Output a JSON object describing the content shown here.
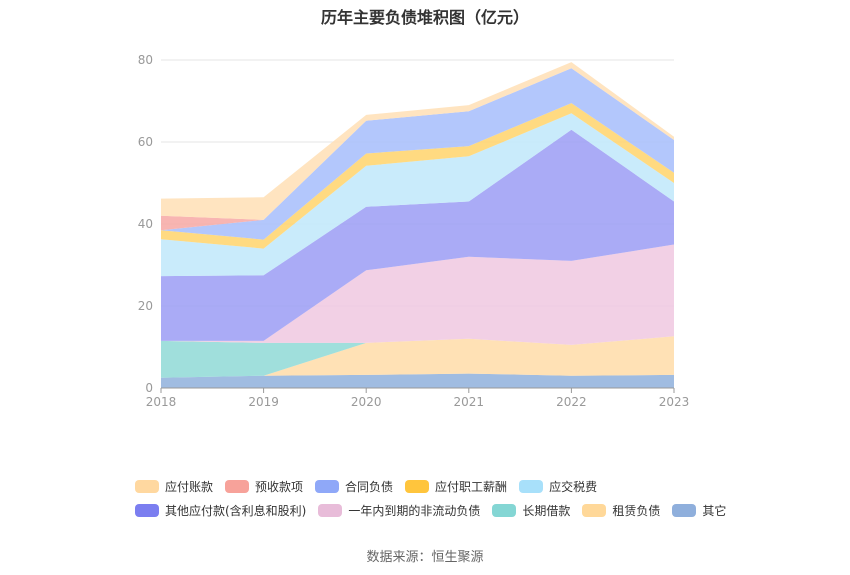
{
  "title": "历年主要负债堆积图（亿元）",
  "source": "数据来源：恒生聚源",
  "chart_data": {
    "type": "area",
    "stacked": true,
    "x": [
      "2018",
      "2019",
      "2020",
      "2021",
      "2022",
      "2023"
    ],
    "ylim": [
      0,
      80
    ],
    "yticks": [
      0,
      20,
      40,
      60,
      80
    ],
    "grid": true,
    "legend_position": "bottom",
    "series": [
      {
        "name": "其它",
        "color": "#8fb0dc",
        "values": [
          2.5,
          3.0,
          3.2,
          3.5,
          3.0,
          3.2
        ]
      },
      {
        "name": "租赁负债",
        "color": "#ffdca8",
        "values": [
          0.0,
          0.0,
          7.8,
          8.5,
          7.5,
          9.4
        ]
      },
      {
        "name": "长期借款",
        "color": "#8fd9d6",
        "values": [
          9.0,
          8.0,
          0.0,
          0.0,
          0.0,
          0.0
        ]
      },
      {
        "name": "一年内到期的非流动负债",
        "color": "#f0c8e0",
        "values": [
          0.0,
          0.5,
          17.7,
          20.0,
          20.5,
          22.4
        ]
      },
      {
        "name": "其他应付款(含利息和股利)",
        "color": "#9b9cf5",
        "values": [
          15.8,
          16.0,
          15.5,
          13.5,
          32.0,
          10.5
        ]
      },
      {
        "name": "应交税费",
        "color": "#bfe7fa",
        "values": [
          9.0,
          6.5,
          10.0,
          11.0,
          4.0,
          4.5
        ]
      },
      {
        "name": "应付职工薪酬",
        "color": "#ffd36b",
        "values": [
          2.2,
          2.2,
          3.0,
          2.5,
          2.5,
          2.5
        ]
      },
      {
        "name": "合同负债",
        "color": "#a6bdfc",
        "values": [
          0.0,
          4.8,
          8.0,
          8.5,
          8.5,
          8.0
        ]
      },
      {
        "name": "预收款项",
        "color": "#f7a8a4",
        "values": [
          3.5,
          0.0,
          0.0,
          0.0,
          0.0,
          0.0
        ]
      },
      {
        "name": "应付账款",
        "color": "#ffdfb5",
        "values": [
          4.2,
          5.5,
          1.4,
          1.5,
          1.5,
          0.8
        ]
      }
    ]
  },
  "legend": {
    "rows": [
      [
        {
          "label": "应付账款",
          "color": "#ffd8a0"
        },
        {
          "label": "预收款项",
          "color": "#f7a29a"
        },
        {
          "label": "合同负债",
          "color": "#8fa8f8"
        },
        {
          "label": "应付职工薪酬",
          "color": "#ffc53d"
        },
        {
          "label": "应交税费",
          "color": "#a8e0fa"
        }
      ],
      [
        {
          "label": "其他应付款(含利息和股利)",
          "color": "#7b7ef0"
        },
        {
          "label": "一年内到期的非流动负债",
          "color": "#e8bcd9"
        },
        {
          "label": "长期借款",
          "color": "#84d6d4"
        },
        {
          "label": "租赁负债",
          "color": "#ffd899"
        },
        {
          "label": "其它",
          "color": "#8fafdc"
        }
      ]
    ]
  }
}
